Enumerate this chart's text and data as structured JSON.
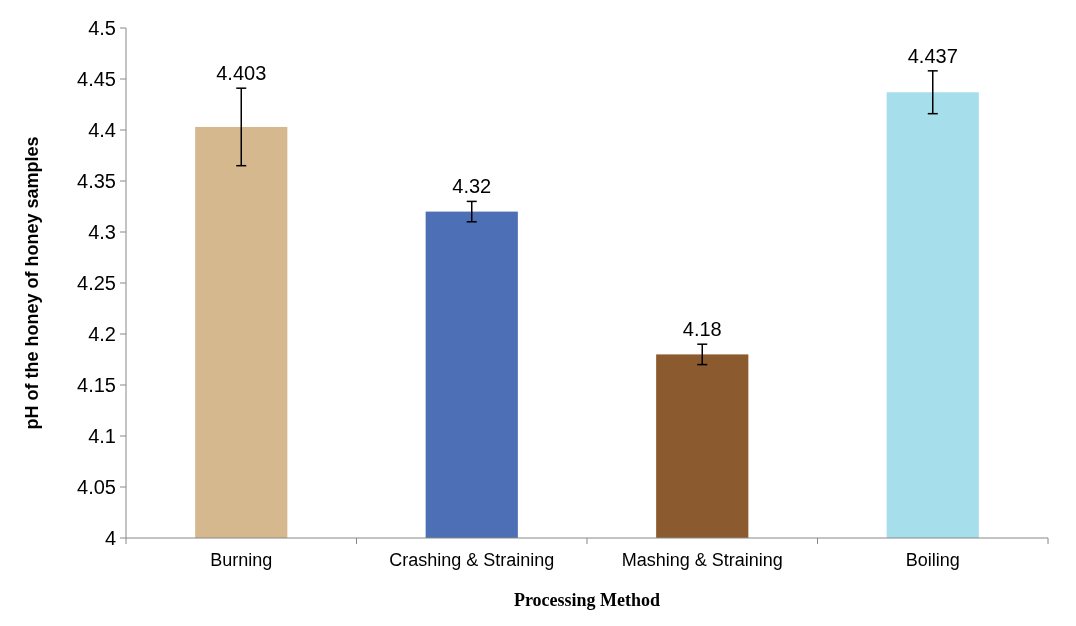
{
  "chart_data": {
    "type": "bar",
    "xlabel": "Processing Method",
    "ylabel": "pH of the honey of honey samples",
    "categories": [
      "Burning",
      "Crashing & Straining",
      "Mashing & Straining",
      "Boiling"
    ],
    "values": [
      4.403,
      4.32,
      4.18,
      4.437
    ],
    "colors": [
      "#d6b88e",
      "#4d6fb5",
      "#8b5a2e",
      "#a6dfeb"
    ],
    "errors": [
      0.038,
      0.01,
      0.01,
      0.021
    ],
    "ylim": [
      4,
      4.5
    ],
    "yticks": [
      4,
      4.05,
      4.1,
      4.15,
      4.2,
      4.25,
      4.3,
      4.35,
      4.4,
      4.45,
      4.5
    ],
    "data_labels": true,
    "grid": false
  }
}
